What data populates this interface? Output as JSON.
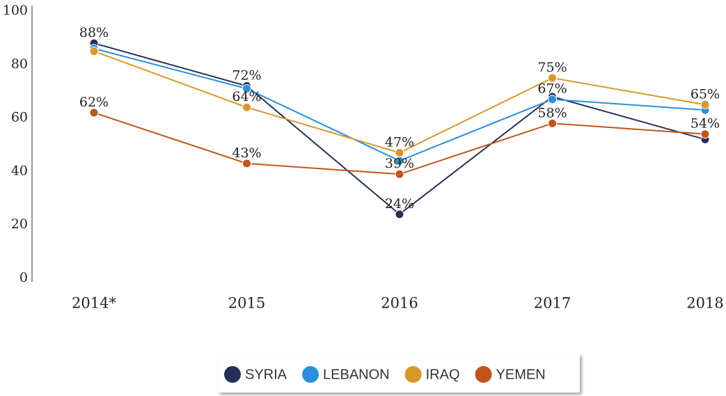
{
  "chart_data": {
    "type": "line",
    "categories": [
      "2014*",
      "2015",
      "2016",
      "2017",
      "2018"
    ],
    "series": [
      {
        "name": "SYRIA",
        "color": "#243058",
        "values": [
          88,
          72,
          24,
          68,
          52
        ],
        "value_labels": [
          "88%",
          "72%",
          "24%",
          null,
          null
        ]
      },
      {
        "name": "LEBANON",
        "color": "#2b8fd9",
        "values": [
          86,
          71,
          44,
          67,
          63
        ],
        "value_labels": [
          null,
          null,
          null,
          "67%",
          null
        ]
      },
      {
        "name": "IRAQ",
        "color": "#d6982b",
        "values": [
          85,
          64,
          47,
          75,
          65
        ],
        "value_labels": [
          null,
          "64%",
          "47%",
          "75%",
          "65%"
        ]
      },
      {
        "name": "YEMEN",
        "color": "#c0541c",
        "values": [
          62,
          43,
          39,
          58,
          54
        ],
        "value_labels": [
          "62%",
          "43%",
          "39%",
          "58%",
          "54%"
        ]
      }
    ],
    "ylim": [
      0,
      100
    ],
    "yticks": [
      0,
      20,
      40,
      60,
      80,
      100
    ],
    "grid": false,
    "legend": "bottom"
  }
}
